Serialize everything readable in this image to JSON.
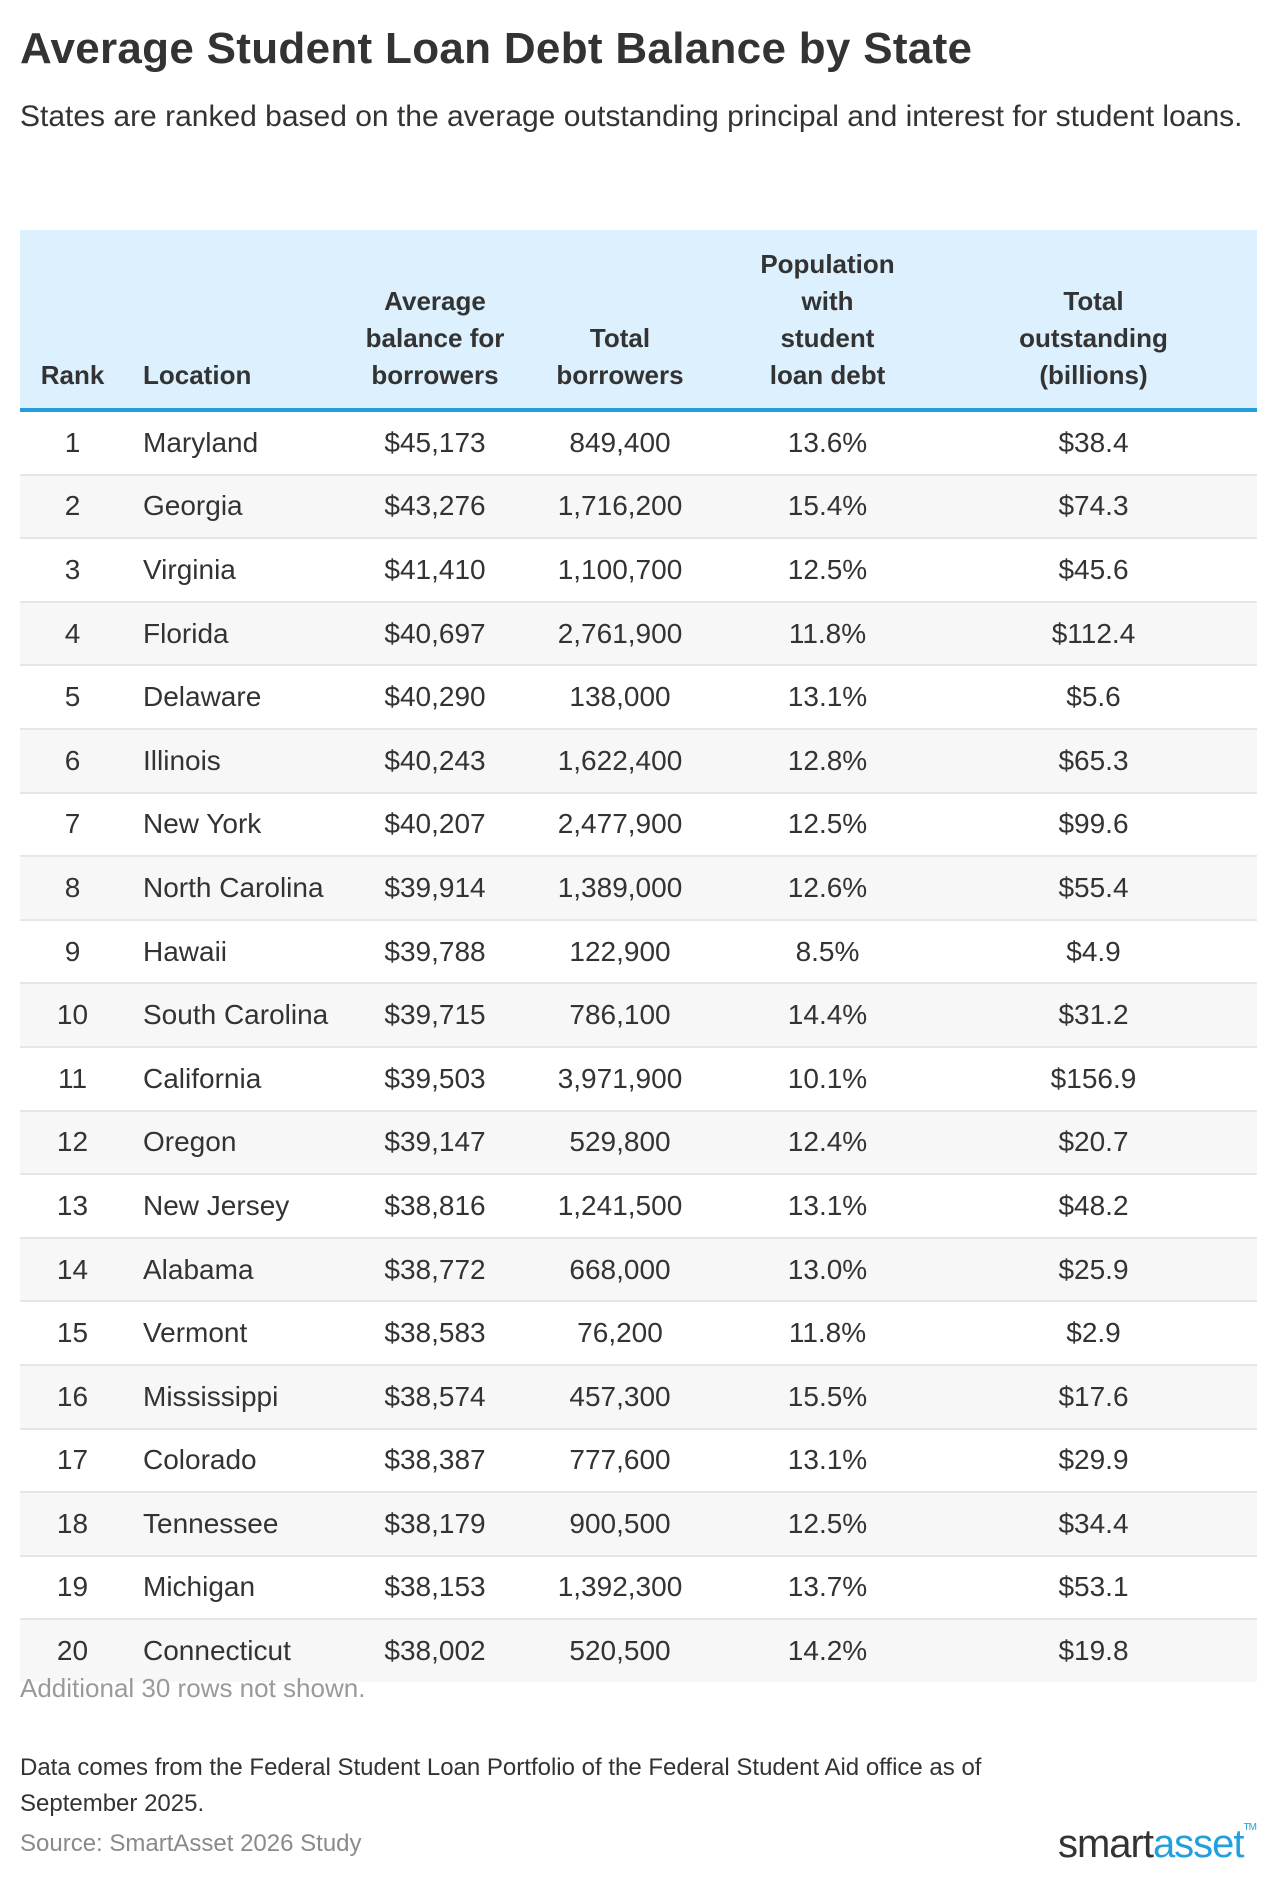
{
  "title": "Average Student Loan Debt Balance by State",
  "subtitle": "States are ranked based on the average outstanding principal and interest for student loans.",
  "table": {
    "columns": [
      "Rank",
      "Location",
      "Average balance for borrowers",
      "Total borrowers",
      "Population with student loan debt",
      "Total outstanding (billions)"
    ],
    "rows": [
      [
        "1",
        "Maryland",
        "$45,173",
        "849,400",
        "13.6%",
        "$38.4"
      ],
      [
        "2",
        "Georgia",
        "$43,276",
        "1,716,200",
        "15.4%",
        "$74.3"
      ],
      [
        "3",
        "Virginia",
        "$41,410",
        "1,100,700",
        "12.5%",
        "$45.6"
      ],
      [
        "4",
        "Florida",
        "$40,697",
        "2,761,900",
        "11.8%",
        "$112.4"
      ],
      [
        "5",
        "Delaware",
        "$40,290",
        "138,000",
        "13.1%",
        "$5.6"
      ],
      [
        "6",
        "Illinois",
        "$40,243",
        "1,622,400",
        "12.8%",
        "$65.3"
      ],
      [
        "7",
        "New York",
        "$40,207",
        "2,477,900",
        "12.5%",
        "$99.6"
      ],
      [
        "8",
        "North Carolina",
        "$39,914",
        "1,389,000",
        "12.6%",
        "$55.4"
      ],
      [
        "9",
        "Hawaii",
        "$39,788",
        "122,900",
        "8.5%",
        "$4.9"
      ],
      [
        "10",
        "South Carolina",
        "$39,715",
        "786,100",
        "14.4%",
        "$31.2"
      ],
      [
        "11",
        "California",
        "$39,503",
        "3,971,900",
        "10.1%",
        "$156.9"
      ],
      [
        "12",
        "Oregon",
        "$39,147",
        "529,800",
        "12.4%",
        "$20.7"
      ],
      [
        "13",
        "New Jersey",
        "$38,816",
        "1,241,500",
        "13.1%",
        "$48.2"
      ],
      [
        "14",
        "Alabama",
        "$38,772",
        "668,000",
        "13.0%",
        "$25.9"
      ],
      [
        "15",
        "Vermont",
        "$38,583",
        "76,200",
        "11.8%",
        "$2.9"
      ],
      [
        "16",
        "Mississippi",
        "$38,574",
        "457,300",
        "15.5%",
        "$17.6"
      ],
      [
        "17",
        "Colorado",
        "$38,387",
        "777,600",
        "13.1%",
        "$29.9"
      ],
      [
        "18",
        "Tennessee",
        "$38,179",
        "900,500",
        "12.5%",
        "$34.4"
      ],
      [
        "19",
        "Michigan",
        "$38,153",
        "1,392,300",
        "13.7%",
        "$53.1"
      ],
      [
        "20",
        "Connecticut",
        "$38,002",
        "520,500",
        "14.2%",
        "$19.8"
      ]
    ]
  },
  "more_rows": "Additional 30 rows not shown.",
  "note": "Data comes from the Federal Student Loan Portfolio of the Federal Student Aid office as of September 2025.",
  "source": "Source: SmartAsset 2026 Study",
  "logo": {
    "part1": "smart",
    "part2": "asset",
    "tm": "TM"
  },
  "colors": {
    "header_bg": "#dcf0fd",
    "accent": "#22a0dd",
    "stripe": "#f7f7f7"
  }
}
